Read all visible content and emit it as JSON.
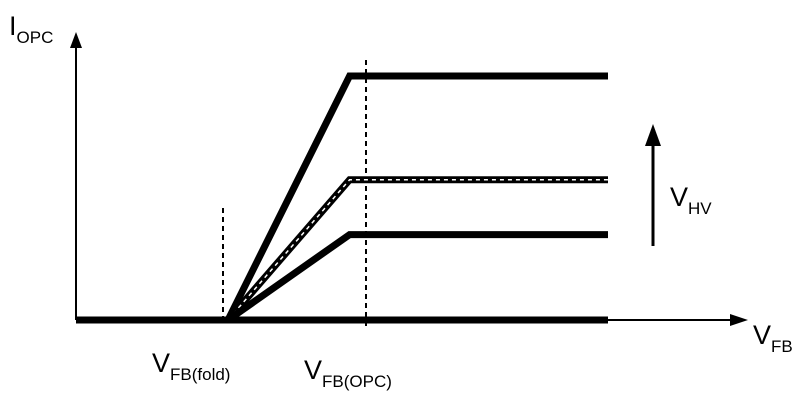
{
  "chart_data": {
    "type": "line",
    "title": "",
    "ylabel": {
      "main": "I",
      "sub": "OPC"
    },
    "xlabel": {
      "main": "V",
      "sub": "FB"
    },
    "markers": [
      {
        "main": "V",
        "sub": "FB(fold)"
      },
      {
        "main": "V",
        "sub": "FB(OPC)"
      }
    ],
    "arrow_label": {
      "main": "V",
      "sub": "HV"
    },
    "series": [
      {
        "points": [
          [
            0,
            0
          ],
          [
            1,
            0
          ],
          [
            1.8,
            4.0
          ],
          [
            3.5,
            4.0
          ]
        ]
      },
      {
        "points": [
          [
            0,
            0
          ],
          [
            1,
            0
          ],
          [
            1.8,
            2.3
          ],
          [
            3.5,
            2.3
          ]
        ],
        "style": "dashed-overlay"
      },
      {
        "points": [
          [
            0,
            0
          ],
          [
            1,
            0
          ],
          [
            1.8,
            1.4
          ],
          [
            3.5,
            1.4
          ]
        ]
      },
      {
        "points": [
          [
            0,
            0
          ],
          [
            3.5,
            0
          ]
        ]
      }
    ]
  },
  "colors": {
    "line": "#000000",
    "background": "#ffffff"
  }
}
